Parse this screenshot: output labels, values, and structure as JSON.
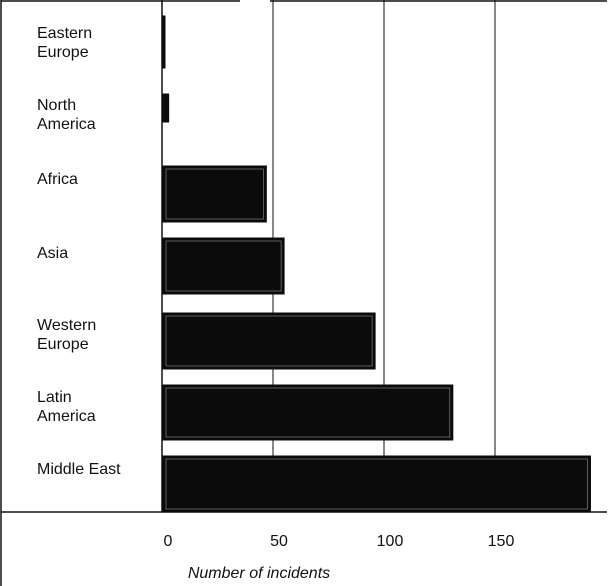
{
  "chart_data": {
    "type": "bar",
    "orientation": "horizontal",
    "categories": [
      [
        "Eastern",
        "Europe"
      ],
      [
        "North",
        "America"
      ],
      [
        "Africa"
      ],
      [
        "Asia"
      ],
      [
        "Western",
        "Europe"
      ],
      [
        "Latin",
        "America"
      ],
      [
        "Middle East"
      ]
    ],
    "values": [
      1,
      3,
      47,
      55,
      96,
      131,
      193
    ],
    "xlabel": "Number of incidents",
    "ylabel": "",
    "xlim": [
      0,
      195
    ],
    "xticks": [
      0,
      50,
      100,
      150
    ],
    "grid": true,
    "bar_color": "#0b0b0b",
    "line_color": "#111111"
  }
}
